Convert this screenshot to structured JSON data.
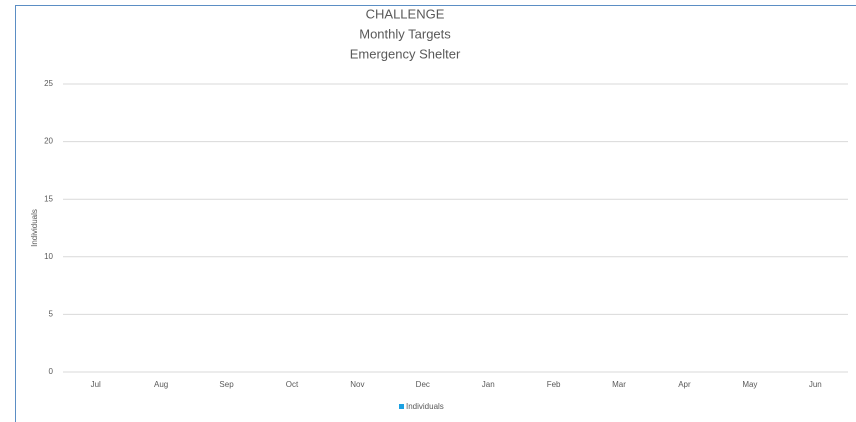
{
  "chart_data": {
    "type": "bar",
    "title": [
      "CHALLENGE",
      "Monthly Targets",
      "Emergency Shelter"
    ],
    "y_label": "Individuals",
    "categories": [
      "Jul",
      "Aug",
      "Sep",
      "Oct",
      "Nov",
      "Dec",
      "Jan",
      "Feb",
      "Mar",
      "Apr",
      "May",
      "Jun"
    ],
    "series": [
      {
        "name": "Individuals",
        "color": "#1ba1e2",
        "values": [
          0,
          0,
          0,
          0,
          0,
          0,
          0,
          0,
          0,
          0,
          0,
          0
        ]
      }
    ],
    "ylim": [
      0,
      25
    ],
    "yticks": [
      0,
      5,
      10,
      15,
      20,
      25
    ],
    "grid": true,
    "legend": "bottom"
  }
}
